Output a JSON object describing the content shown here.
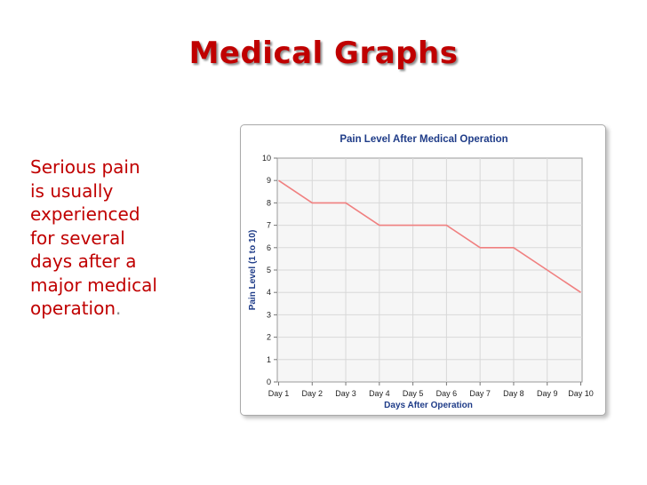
{
  "slide": {
    "title": "Medical Graphs",
    "body_lines": [
      "Serious pain",
      "is usually",
      "experienced",
      "for several",
      "days after a",
      "major medical",
      "operation"
    ],
    "body_end_punct": "."
  },
  "colors": {
    "title": "#c00000",
    "body_text": "#c00000",
    "chart_title": "#1f3c88",
    "line": "#f08080",
    "grid": "#d8d8d8",
    "plot_bg": "#f6f6f6"
  },
  "chart_data": {
    "type": "line",
    "title": "Pain Level After Medical Operation",
    "xlabel": "Days After Operation",
    "ylabel": "Pain Level (1 to 10)",
    "categories": [
      "Day 1",
      "Day 2",
      "Day 3",
      "Day 4",
      "Day 5",
      "Day 6",
      "Day 7",
      "Day 8",
      "Day 9",
      "Day 10"
    ],
    "series": [
      {
        "values": [
          9,
          8,
          8,
          7,
          7,
          7,
          6,
          6,
          5,
          4
        ]
      }
    ],
    "ylim": [
      0,
      10
    ],
    "yticks": [
      0,
      1,
      2,
      3,
      4,
      5,
      6,
      7,
      8,
      9,
      10
    ],
    "grid": true,
    "legend": "none"
  }
}
